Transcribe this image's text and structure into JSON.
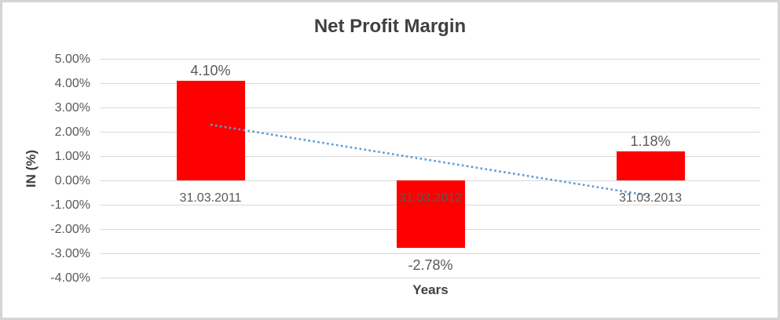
{
  "chart_data": {
    "type": "bar",
    "title": "Net Profit Margin",
    "xlabel": "Years",
    "ylabel": "IN (%)",
    "categories": [
      "31.03.2011",
      "31.03.2012",
      "31.03.2013"
    ],
    "values": [
      4.1,
      -2.78,
      1.18
    ],
    "data_labels": [
      "4.10%",
      "-2.78%",
      "1.18%"
    ],
    "y_ticks": [
      {
        "label": "5.00%",
        "value": 5
      },
      {
        "label": "4.00%",
        "value": 4
      },
      {
        "label": "3.00%",
        "value": 3
      },
      {
        "label": "2.00%",
        "value": 2
      },
      {
        "label": "1.00%",
        "value": 1
      },
      {
        "label": "0.00%",
        "value": 0
      },
      {
        "label": "-1.00%",
        "value": -1
      },
      {
        "label": "-2.00%",
        "value": -2
      },
      {
        "label": "-3.00%",
        "value": -3
      },
      {
        "label": "-4.00%",
        "value": -4
      }
    ],
    "ylim": [
      -4,
      5
    ],
    "grid": true,
    "legend": "none",
    "trendline": {
      "type": "linear",
      "style": "dotted",
      "start_value": 2.29,
      "end_value": -0.63
    },
    "colors": {
      "bar": "#ff0000",
      "trendline": "#5b9bd5",
      "gridline": "#d9d9d9",
      "label_text": "#595959",
      "title_text": "#404040",
      "frame_border": "#d6d4d4"
    }
  }
}
